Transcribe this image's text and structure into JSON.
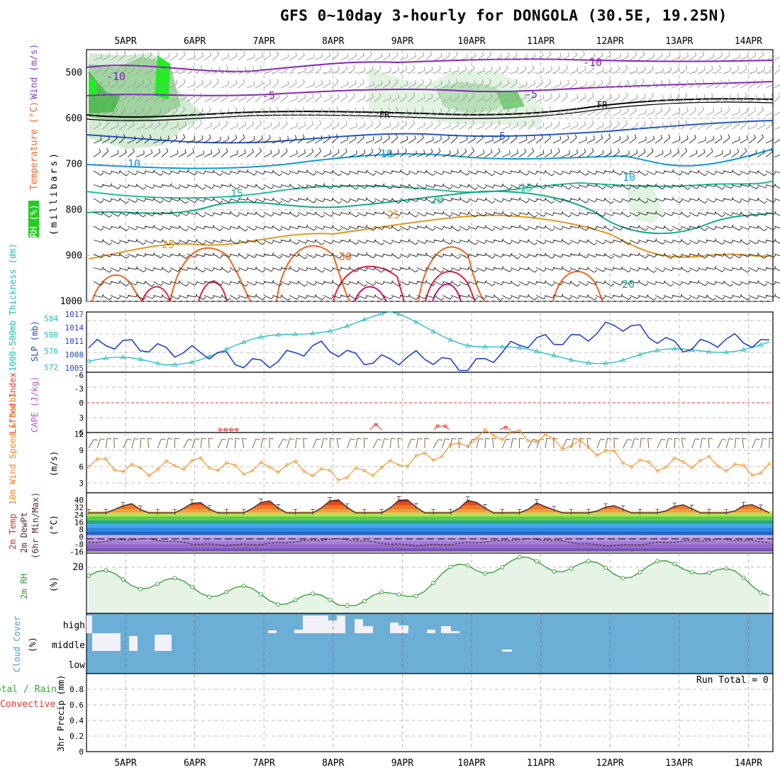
{
  "title": "GFS 0~10day 3-hourly for DONGOLA (30.5E, 19.25N)",
  "colors": {
    "rh": "#33bb33",
    "temp": "#ee6633",
    "wind": "#8844bb",
    "mb": "#000000",
    "thickness": "#22bbbb",
    "slp": "#2244cc",
    "li": "#ee3333",
    "cape": "#bb55cc",
    "wind10": "#ee8822",
    "barbs": "#775533",
    "rh2m": "#339933",
    "cloud": "#6baed6",
    "precip_total": "#33aa33",
    "precip_conv": "#ee3333"
  },
  "x_ticks": [
    "5APR",
    "6APR",
    "7APR",
    "8APR",
    "9APR",
    "10APR",
    "11APR",
    "12APR",
    "13APR",
    "14APR"
  ],
  "panels": {
    "profile": {
      "labels": {
        "rh": "RH (%)",
        "temp": "Temperature (°C)",
        "wind": "Wind (m/s)",
        "mb": "(millibars)"
      },
      "y_ticks": [
        "500",
        "600",
        "700",
        "800",
        "900",
        "1000"
      ],
      "y_values": [
        500,
        600,
        700,
        800,
        900,
        1000
      ],
      "ylim": [
        450,
        1000
      ],
      "contour_labels": [
        "-10",
        "-5",
        "-5",
        "-5",
        "FR",
        "FR",
        "-5",
        "10",
        "-10",
        "10",
        "10",
        "15",
        "20",
        "15",
        "25",
        "25",
        "20",
        "30",
        "20"
      ]
    },
    "thickness": {
      "label_thk": "1000-500mb Thickness (dm)",
      "label_slp": "SLP (mb)",
      "y_ticks_thk": [
        "584",
        "580",
        "576",
        "572"
      ],
      "y_ticks_slp": [
        "1017",
        "1014",
        "1011",
        "1008",
        "1005"
      ]
    },
    "instability": {
      "label_li": "Lifted Index",
      "label_cape": "CAPE (J/kg)",
      "y_ticks": [
        "-6",
        "-3",
        "0",
        "3",
        "6"
      ]
    },
    "wind10": {
      "label": "10m Wind Speed & Barbs",
      "unit": "(m/s)",
      "y_ticks": [
        "12",
        "9",
        "6",
        "3"
      ]
    },
    "temp2m": {
      "label_t": "2m Temp",
      "label_td": "2m DewPt",
      "label_mm": "(6hr Min/Max)",
      "unit": "(°C)",
      "y_ticks": [
        "40",
        "32",
        "24",
        "16",
        "8",
        "0",
        "-8",
        "-16"
      ]
    },
    "rh2m": {
      "label": "2m RH",
      "unit": "(%)",
      "y_ticks": [
        "20"
      ]
    },
    "cloud": {
      "label": "Cloud Cover",
      "unit": "(%)",
      "levels": [
        "high",
        "middle",
        "low"
      ]
    },
    "precip": {
      "label_total": "Total / Rain",
      "label_conv": "Convective",
      "unit": "3hr Precip (mm)",
      "y_ticks": [
        "0.8",
        "0.6",
        "0.4",
        "0.2",
        "0"
      ],
      "run_total": "Run Total = 0"
    }
  },
  "chart_data": {
    "type": "line",
    "x": [
      "5APR",
      "6APR",
      "7APR",
      "8APR",
      "9APR",
      "10APR",
      "11APR",
      "12APR",
      "13APR",
      "14APR"
    ],
    "series": [
      {
        "name": "SLP (mb)",
        "values": [
          1009.5,
          1010,
          1006,
          1009,
          1007,
          1006,
          1011,
          1014,
          1010,
          1011
        ]
      },
      {
        "name": "1000-500mb Thickness (dm)",
        "values": [
          573.5,
          573,
          577,
          581.5,
          584.5,
          578.5,
          574.5,
          574,
          576,
          578
        ]
      },
      {
        "name": "10m Wind Speed & Barbs",
        "values": [
          5,
          4.5,
          5,
          3.5,
          4,
          10,
          11,
          6,
          5,
          4.5
        ]
      },
      {
        "name": "2m RH",
        "values": [
          16,
          12,
          8,
          4,
          5,
          20,
          22,
          18,
          21,
          10
        ]
      }
    ]
  }
}
